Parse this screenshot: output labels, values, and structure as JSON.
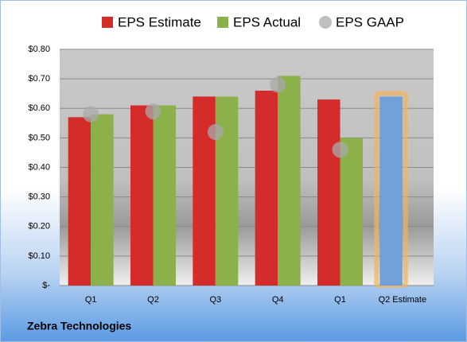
{
  "chart_data": {
    "type": "bar",
    "title": "Zebra Technologies",
    "categories": [
      "Q1",
      "Q2",
      "Q3",
      "Q4",
      "Q1",
      "Q2 Estimate"
    ],
    "series": [
      {
        "name": "EPS Estimate",
        "color": "#d42b2b",
        "values": [
          0.57,
          0.61,
          0.64,
          0.66,
          0.63,
          0.64
        ]
      },
      {
        "name": "EPS Actual",
        "color": "#8cb04a",
        "values": [
          0.58,
          0.61,
          0.64,
          0.71,
          0.5,
          null
        ]
      },
      {
        "name": "EPS GAAP",
        "color": "#a9a9a9",
        "marker": "circle",
        "values": [
          0.58,
          0.59,
          0.52,
          0.68,
          0.46,
          null
        ]
      }
    ],
    "highlight": {
      "series": 0,
      "index": 5,
      "color": "#72a0d8",
      "glow": "#f2b25c"
    },
    "ylim": [
      0,
      0.8
    ],
    "yticks": [
      {
        "value": 0,
        "label": "$-"
      },
      {
        "value": 0.1,
        "label": "$0.10"
      },
      {
        "value": 0.2,
        "label": "$0.20"
      },
      {
        "value": 0.3,
        "label": "$0.30"
      },
      {
        "value": 0.4,
        "label": "$0.40"
      },
      {
        "value": 0.5,
        "label": "$0.50"
      },
      {
        "value": 0.6,
        "label": "$0.60"
      },
      {
        "value": 0.7,
        "label": "$0.70"
      },
      {
        "value": 0.8,
        "label": "$0.80"
      }
    ],
    "grid": true,
    "legend": "top"
  }
}
